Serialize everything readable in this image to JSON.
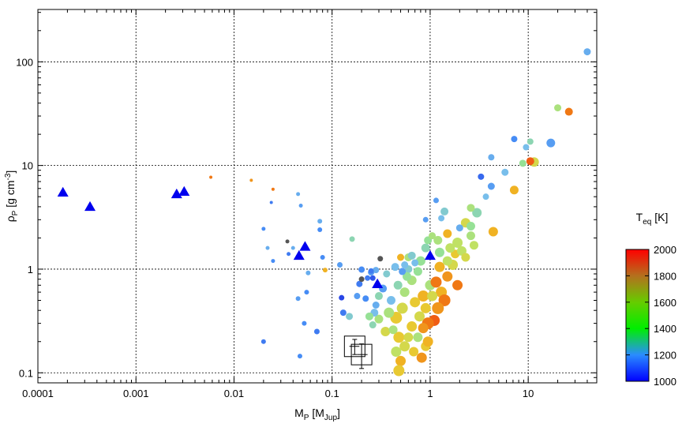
{
  "chart_data": {
    "type": "scatter",
    "xscale": "log",
    "yscale": "log",
    "xlim": [
      0.0001,
      50
    ],
    "ylim": [
      0.08,
      320
    ],
    "grid": true,
    "xlabel": {
      "main": "M",
      "sub": "P",
      "rest": " [M",
      "sub2": "Jup",
      "end": "]"
    },
    "ylabel": {
      "main": "ρ",
      "sub": "P",
      "rest": " [g cm",
      "sup": "-3",
      "end": "]"
    },
    "xticks": [
      {
        "v": 0.0001,
        "label": "0.0001"
      },
      {
        "v": 0.001,
        "label": "0.001"
      },
      {
        "v": 0.01,
        "label": "0.01"
      },
      {
        "v": 0.1,
        "label": "0.1"
      },
      {
        "v": 1,
        "label": "1"
      },
      {
        "v": 10,
        "label": "10"
      }
    ],
    "yticks": [
      {
        "v": 0.1,
        "label": "0.1"
      },
      {
        "v": 1,
        "label": "1"
      },
      {
        "v": 10,
        "label": "10"
      },
      {
        "v": 100,
        "label": "100"
      }
    ],
    "colorbar": {
      "title_main": "T",
      "title_sub": "eq",
      "title_rest": " [K]",
      "min": 1000,
      "max": 2000,
      "ticks": [
        {
          "v": 1000,
          "label": "1000"
        },
        {
          "v": 1200,
          "label": "1200"
        },
        {
          "v": 1400,
          "label": "1400"
        },
        {
          "v": 1600,
          "label": "1600"
        },
        {
          "v": 1800,
          "label": "1800"
        },
        {
          "v": 2000,
          "label": "2000"
        }
      ]
    },
    "triangles": [
      [
        0.00018,
        5.5
      ],
      [
        0.00034,
        4.0
      ],
      [
        0.0026,
        5.3
      ],
      [
        0.0031,
        5.6
      ],
      [
        0.046,
        1.35
      ],
      [
        0.053,
        1.65
      ],
      [
        0.29,
        0.72
      ],
      [
        1.0,
        1.35
      ]
    ],
    "highlight_boxes": [
      {
        "x": 0.17,
        "y": 0.18,
        "yerr": [
          0.15,
          0.21
        ],
        "xerr": [
          0.15,
          0.19
        ]
      },
      {
        "x": 0.2,
        "y": 0.15,
        "yerr": [
          0.11,
          0.19
        ],
        "xerr": [
          0.18,
          0.23
        ]
      }
    ],
    "points": [
      [
        40,
        125,
        1300,
        8
      ],
      [
        26,
        33,
        1850,
        9
      ],
      [
        20,
        36,
        1550,
        8
      ],
      [
        17,
        16.5,
        1250,
        10
      ],
      [
        11.5,
        10.8,
        1650,
        11
      ],
      [
        10.5,
        11,
        1900,
        9
      ],
      [
        10.5,
        17,
        1450,
        7
      ],
      [
        9.5,
        15,
        1350,
        7
      ],
      [
        8.8,
        10.5,
        1500,
        8
      ],
      [
        7.2,
        5.8,
        1750,
        10
      ],
      [
        7.2,
        18,
        1200,
        7
      ],
      [
        5.8,
        8.6,
        1350,
        8
      ],
      [
        4.2,
        12,
        1300,
        7
      ],
      [
        4.2,
        6.3,
        1250,
        8
      ],
      [
        4.4,
        2.3,
        1750,
        11
      ],
      [
        3.3,
        7.8,
        1100,
        7
      ],
      [
        3.7,
        5.0,
        1350,
        7
      ],
      [
        3.0,
        3.5,
        1450,
        11
      ],
      [
        2.6,
        3.9,
        1550,
        9
      ],
      [
        2.3,
        2.8,
        1650,
        11
      ],
      [
        2.6,
        2.1,
        1550,
        10
      ],
      [
        2.0,
        2.5,
        1300,
        8
      ],
      [
        1.9,
        1.8,
        1600,
        12
      ],
      [
        1.8,
        1.4,
        1700,
        10
      ],
      [
        1.5,
        2.2,
        1750,
        10
      ],
      [
        1.3,
        3.1,
        1350,
        7
      ],
      [
        1.2,
        1.9,
        1550,
        10
      ],
      [
        2.1,
        1.5,
        1600,
        11
      ],
      [
        1.7,
        1.1,
        1650,
        12
      ],
      [
        1.9,
        0.7,
        1850,
        12
      ],
      [
        1.5,
        0.85,
        1800,
        12
      ],
      [
        1.3,
        0.6,
        1750,
        13
      ],
      [
        1.4,
        0.5,
        1850,
        14
      ],
      [
        1.2,
        0.42,
        1800,
        14
      ],
      [
        1.1,
        0.32,
        1900,
        13
      ],
      [
        0.95,
        0.3,
        1850,
        14
      ],
      [
        1.0,
        0.7,
        1550,
        12
      ],
      [
        0.9,
        1.6,
        1450,
        10
      ],
      [
        0.8,
        1.2,
        1500,
        11
      ],
      [
        0.75,
        0.95,
        1500,
        10
      ],
      [
        0.85,
        0.55,
        1750,
        13
      ],
      [
        0.7,
        0.48,
        1700,
        12
      ],
      [
        0.65,
        0.78,
        1550,
        11
      ],
      [
        0.6,
        1.0,
        1400,
        9
      ],
      [
        0.55,
        0.6,
        1550,
        11
      ],
      [
        0.52,
        0.42,
        1650,
        13
      ],
      [
        0.45,
        0.34,
        1700,
        14
      ],
      [
        0.48,
        0.22,
        1700,
        13
      ],
      [
        0.55,
        0.18,
        1650,
        12
      ],
      [
        0.45,
        0.16,
        1600,
        12
      ],
      [
        0.5,
        0.13,
        1750,
        12
      ],
      [
        0.48,
        0.105,
        1700,
        13
      ],
      [
        0.75,
        0.22,
        1550,
        11
      ],
      [
        0.85,
        0.27,
        1800,
        12
      ],
      [
        0.9,
        0.18,
        1700,
        11
      ],
      [
        0.95,
        0.2,
        1750,
        12
      ],
      [
        0.4,
        0.5,
        1350,
        10
      ],
      [
        0.38,
        0.38,
        1550,
        12
      ],
      [
        0.35,
        0.25,
        1650,
        11
      ],
      [
        0.42,
        0.26,
        1550,
        10
      ],
      [
        0.33,
        0.65,
        1250,
        9
      ],
      [
        0.36,
        0.9,
        1400,
        8
      ],
      [
        0.3,
        0.55,
        1450,
        9
      ],
      [
        0.28,
        0.45,
        1300,
        8
      ],
      [
        0.3,
        0.33,
        1550,
        10
      ],
      [
        0.27,
        0.38,
        1350,
        9
      ],
      [
        0.26,
        0.29,
        1450,
        8
      ],
      [
        0.24,
        0.35,
        1500,
        9
      ],
      [
        0.22,
        0.52,
        1200,
        7
      ],
      [
        0.19,
        0.72,
        1150,
        7
      ],
      [
        0.2,
        0.99,
        1200,
        7
      ],
      [
        0.23,
        0.82,
        1150,
        6
      ],
      [
        0.25,
        0.93,
        1250,
        7
      ],
      [
        0.28,
        0.98,
        1300,
        7
      ],
      [
        0.31,
        1.26,
        950,
        6
      ],
      [
        0.26,
        0.82,
        1050,
        6
      ],
      [
        0.18,
        0.55,
        1250,
        7
      ],
      [
        0.15,
        0.35,
        1400,
        8
      ],
      [
        0.13,
        0.38,
        1150,
        7
      ],
      [
        0.125,
        0.53,
        1000,
        6
      ],
      [
        0.12,
        1.1,
        1250,
        6
      ],
      [
        0.16,
        1.95,
        1450,
        6
      ],
      [
        0.075,
        2.4,
        1200,
        5
      ],
      [
        0.075,
        2.9,
        1300,
        5
      ],
      [
        0.08,
        1.3,
        1200,
        5
      ],
      [
        0.085,
        0.98,
        1750,
        5
      ],
      [
        0.07,
        0.25,
        1150,
        6
      ],
      [
        0.055,
        0.6,
        1200,
        5
      ],
      [
        0.045,
        0.52,
        1250,
        5
      ],
      [
        0.052,
        0.3,
        1200,
        5
      ],
      [
        0.047,
        0.145,
        1200,
        5
      ],
      [
        0.057,
        0.92,
        1300,
        5
      ],
      [
        0.035,
        1.85,
        950,
        4
      ],
      [
        0.036,
        1.4,
        1150,
        4
      ],
      [
        0.04,
        1.6,
        1300,
        4
      ],
      [
        0.045,
        5.3,
        1300,
        4
      ],
      [
        0.048,
        4.1,
        1250,
        4
      ],
      [
        0.02,
        2.45,
        1200,
        4
      ],
      [
        0.022,
        1.6,
        1300,
        4
      ],
      [
        0.024,
        4.4,
        1150,
        3
      ],
      [
        0.025,
        1.2,
        1200,
        4
      ],
      [
        0.02,
        0.2,
        1150,
        5
      ],
      [
        0.015,
        7.2,
        1800,
        3
      ],
      [
        0.025,
        5.9,
        1850,
        3
      ],
      [
        0.0058,
        7.7,
        1850,
        3
      ],
      [
        0.2,
        0.8,
        950,
        6
      ],
      [
        0.25,
        0.96,
        1150,
        6
      ],
      [
        0.6,
        1.3,
        1550,
        9
      ],
      [
        0.7,
        1.15,
        1350,
        8
      ],
      [
        0.65,
        1.35,
        1400,
        9
      ],
      [
        0.5,
        1.3,
        1750,
        8
      ],
      [
        0.55,
        1.1,
        1350,
        8
      ],
      [
        0.95,
        1.9,
        1500,
        9
      ],
      [
        0.9,
        3.0,
        1250,
        6
      ],
      [
        1.05,
        2.1,
        1550,
        8
      ],
      [
        1.15,
        4.6,
        1250,
        6
      ],
      [
        1.4,
        3.6,
        1400,
        9
      ],
      [
        1.6,
        1.6,
        1600,
        11
      ],
      [
        2.3,
        1.3,
        1650,
        10
      ],
      [
        2.8,
        1.7,
        1600,
        10
      ],
      [
        1.05,
        0.55,
        1650,
        12
      ],
      [
        1.15,
        0.75,
        1850,
        13
      ],
      [
        0.9,
        0.42,
        1700,
        12
      ],
      [
        0.78,
        0.35,
        1650,
        12
      ],
      [
        0.65,
        0.28,
        1700,
        12
      ],
      [
        0.6,
        0.22,
        1650,
        11
      ],
      [
        0.68,
        0.16,
        1700,
        11
      ],
      [
        0.82,
        0.14,
        1800,
        12
      ],
      [
        0.58,
        0.85,
        1500,
        10
      ],
      [
        0.47,
        0.7,
        1450,
        10
      ],
      [
        0.44,
        1.05,
        1350,
        9
      ],
      [
        0.52,
        0.95,
        1250,
        8
      ],
      [
        1.25,
        1.45,
        1500,
        11
      ],
      [
        1.5,
        1.2,
        1600,
        11
      ],
      [
        1.25,
        1.05,
        1750,
        12
      ],
      [
        2.6,
        2.6,
        1500,
        10
      ]
    ]
  }
}
